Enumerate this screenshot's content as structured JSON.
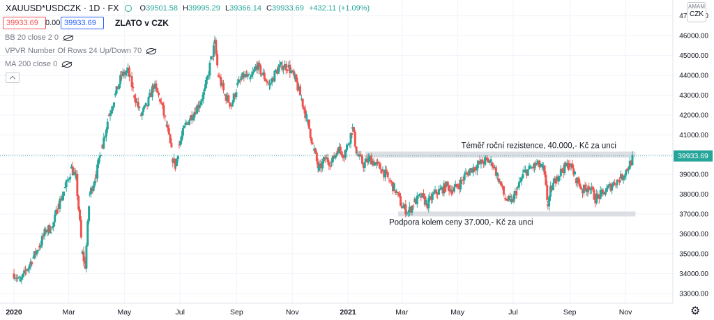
{
  "header": {
    "symbol": "XAUUSD*USDCZK · 1D · FX",
    "o_label": "O",
    "o_value": "39501.58",
    "h_label": "H",
    "h_value": "39995.29",
    "l_label": "L",
    "l_value": "39366.14",
    "c_label": "C",
    "c_value": "39933.69",
    "change": "+432.11 (+1.09%)"
  },
  "trade": {
    "sell_price": "39933.69",
    "spread": "0.00",
    "buy_price": "39933.69"
  },
  "chart_title": "ZLATO v CZK",
  "indicators": [
    {
      "label": "BB 20 close 2 0"
    },
    {
      "label": "VPVR Number Of Rows 24 Up/Down 70"
    },
    {
      "label": "MA 200 close 0"
    }
  ],
  "currency_button": {
    "top": "AMAM",
    "label": "CZK"
  },
  "colors": {
    "up": "#26a69a",
    "down": "#ef5350",
    "grid": "#f0f3fa",
    "zone": "#d1d4dc"
  },
  "chart_data": {
    "type": "candlestick",
    "x_axis": {
      "range": [
        "2020-01-01",
        "2021-11-30"
      ],
      "tick_labels": [
        "2020",
        "Mar",
        "May",
        "Jul",
        "Sep",
        "Nov",
        "2021",
        "Mar",
        "May",
        "Jul",
        "Sep",
        "Nov"
      ]
    },
    "y_axis": {
      "range": [
        32500,
        47800
      ],
      "tick_labels": [
        "33000.00",
        "34000.00",
        "35000.00",
        "36000.00",
        "37000.00",
        "38000.00",
        "39000.00",
        "40000.00",
        "41000.00",
        "42000.00",
        "43000.00",
        "44000.00",
        "45000.00",
        "46000.00",
        "47000.00"
      ]
    },
    "last_price": {
      "value": 39933.69,
      "label": "39933.69"
    },
    "zones": [
      {
        "from": 39850,
        "to": 40150,
        "start": "2021-01-20",
        "end": "2021-11-12",
        "label": "Téměř roční rezistence, 40.000,- Kč za unci"
      },
      {
        "from": 36880,
        "to": 37130,
        "start": "2021-02-25",
        "end": "2021-11-12",
        "label": "Podpora kolem ceny 37.000,- Kč za unci"
      }
    ],
    "series": [
      {
        "name": "",
        "points": [
          [
            "2020-01-01",
            34000
          ],
          [
            "2020-01-08",
            33600
          ],
          [
            "2020-01-15",
            34200
          ],
          [
            "2020-01-22",
            34800
          ],
          [
            "2020-01-29",
            35400
          ],
          [
            "2020-02-05",
            36200
          ],
          [
            "2020-02-12",
            36300
          ],
          [
            "2020-02-19",
            37500
          ],
          [
            "2020-02-26",
            38300
          ],
          [
            "2020-03-04",
            39300
          ],
          [
            "2020-03-09",
            38800
          ],
          [
            "2020-03-16",
            35000
          ],
          [
            "2020-03-19",
            34400
          ],
          [
            "2020-03-24",
            38000
          ],
          [
            "2020-03-31",
            39000
          ],
          [
            "2020-04-07",
            40500
          ],
          [
            "2020-04-14",
            42000
          ],
          [
            "2020-04-21",
            43000
          ],
          [
            "2020-04-28",
            44000
          ],
          [
            "2020-05-05",
            44200
          ],
          [
            "2020-05-12",
            43000
          ],
          [
            "2020-05-19",
            42000
          ],
          [
            "2020-05-26",
            42500
          ],
          [
            "2020-06-02",
            43500
          ],
          [
            "2020-06-09",
            42800
          ],
          [
            "2020-06-16",
            41500
          ],
          [
            "2020-06-23",
            39800
          ],
          [
            "2020-06-26",
            39400
          ],
          [
            "2020-06-30",
            40500
          ],
          [
            "2020-07-07",
            41500
          ],
          [
            "2020-07-14",
            42000
          ],
          [
            "2020-07-21",
            42500
          ],
          [
            "2020-07-28",
            43200
          ],
          [
            "2020-08-04",
            44800
          ],
          [
            "2020-08-08",
            45600
          ],
          [
            "2020-08-12",
            44000
          ],
          [
            "2020-08-19",
            43000
          ],
          [
            "2020-08-26",
            42500
          ],
          [
            "2020-09-02",
            43500
          ],
          [
            "2020-09-09",
            44000
          ],
          [
            "2020-09-16",
            43800
          ],
          [
            "2020-09-23",
            44500
          ],
          [
            "2020-09-30",
            44000
          ],
          [
            "2020-10-07",
            43500
          ],
          [
            "2020-10-14",
            44200
          ],
          [
            "2020-10-21",
            44500
          ],
          [
            "2020-10-28",
            44400
          ],
          [
            "2020-11-04",
            43800
          ],
          [
            "2020-11-11",
            42800
          ],
          [
            "2020-11-18",
            41600
          ],
          [
            "2020-11-25",
            40200
          ],
          [
            "2020-11-30",
            39200
          ],
          [
            "2020-12-07",
            39800
          ],
          [
            "2020-12-14",
            39600
          ],
          [
            "2020-12-21",
            40300
          ],
          [
            "2020-12-28",
            40000
          ],
          [
            "2021-01-06",
            41300
          ],
          [
            "2021-01-11",
            40000
          ],
          [
            "2021-01-18",
            39500
          ],
          [
            "2021-01-25",
            39800
          ],
          [
            "2021-02-01",
            39500
          ],
          [
            "2021-02-08",
            39200
          ],
          [
            "2021-02-15",
            38700
          ],
          [
            "2021-02-22",
            38200
          ],
          [
            "2021-03-01",
            37400
          ],
          [
            "2021-03-08",
            37100
          ],
          [
            "2021-03-15",
            37600
          ],
          [
            "2021-03-22",
            37900
          ],
          [
            "2021-03-29",
            37500
          ],
          [
            "2021-04-05",
            38000
          ],
          [
            "2021-04-12",
            38200
          ],
          [
            "2021-04-19",
            38400
          ],
          [
            "2021-04-26",
            38200
          ],
          [
            "2021-05-03",
            38500
          ],
          [
            "2021-05-10",
            39000
          ],
          [
            "2021-05-17",
            39300
          ],
          [
            "2021-05-24",
            39500
          ],
          [
            "2021-06-01",
            39700
          ],
          [
            "2021-06-08",
            39600
          ],
          [
            "2021-06-15",
            38800
          ],
          [
            "2021-06-22",
            37800
          ],
          [
            "2021-06-29",
            37600
          ],
          [
            "2021-07-06",
            38300
          ],
          [
            "2021-07-13",
            39100
          ],
          [
            "2021-07-20",
            39300
          ],
          [
            "2021-07-27",
            39500
          ],
          [
            "2021-08-03",
            39300
          ],
          [
            "2021-08-08",
            37500
          ],
          [
            "2021-08-11",
            38200
          ],
          [
            "2021-08-18",
            38900
          ],
          [
            "2021-08-25",
            39300
          ],
          [
            "2021-09-01",
            39500
          ],
          [
            "2021-09-08",
            38800
          ],
          [
            "2021-09-15",
            38200
          ],
          [
            "2021-09-22",
            38400
          ],
          [
            "2021-09-29",
            37800
          ],
          [
            "2021-10-06",
            38000
          ],
          [
            "2021-10-13",
            38300
          ],
          [
            "2021-10-20",
            38600
          ],
          [
            "2021-10-27",
            38800
          ],
          [
            "2021-11-03",
            39300
          ],
          [
            "2021-11-10",
            39900
          ]
        ]
      }
    ]
  }
}
